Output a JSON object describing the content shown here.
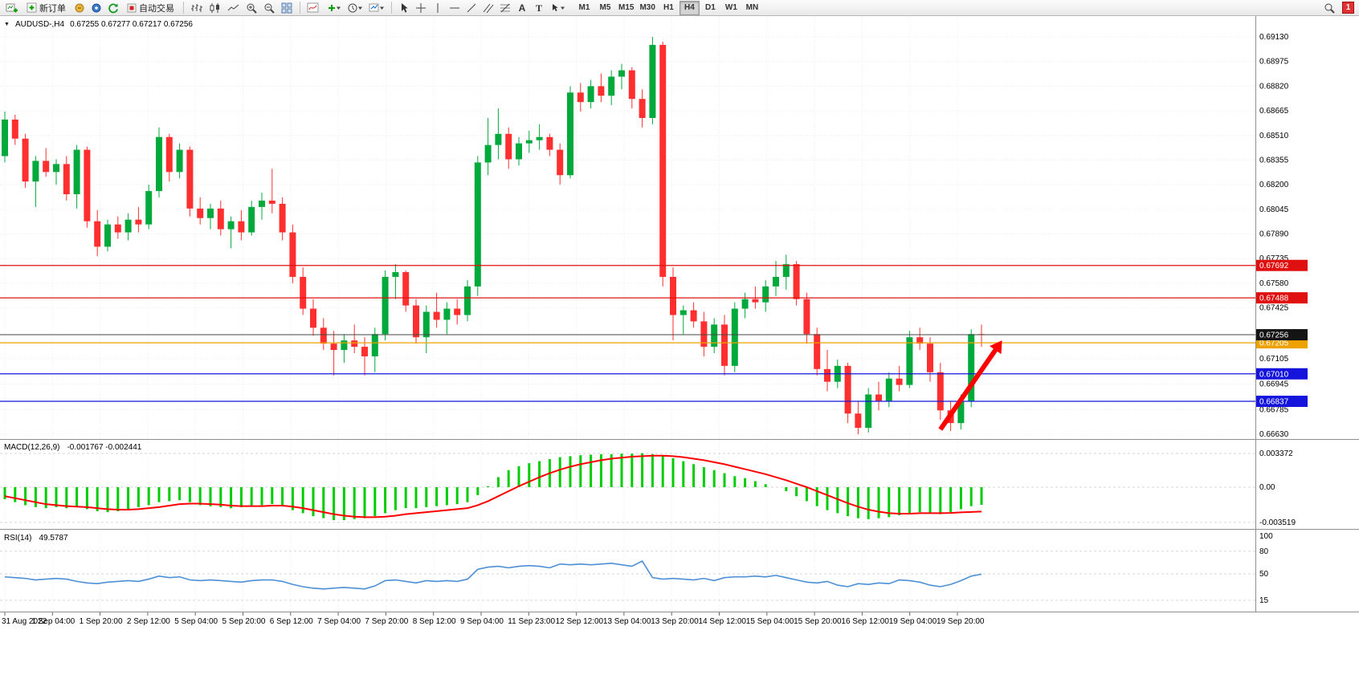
{
  "toolbar": {
    "new_order_label": "新订单",
    "auto_trading_label": "自动交易",
    "timeframes": [
      "M1",
      "M5",
      "M15",
      "M30",
      "H1",
      "H4",
      "D1",
      "W1",
      "MN"
    ],
    "active_timeframe": "H4",
    "notification_count": "1"
  },
  "chart": {
    "collapse_arrow": "▼",
    "symbol": "AUDUSD-,H4",
    "ohlc": "0.67255 0.67277 0.67217 0.67256"
  },
  "chart_data": {
    "type": "candlestick",
    "symbol": "AUDUSD-",
    "timeframe": "H4",
    "colors": {
      "up": "#00a93b",
      "down": "#ff2f2f"
    },
    "price_axis": {
      "max": 0.6913,
      "min": 0.6663,
      "labels": [
        "0.69130",
        "0.68975",
        "0.68820",
        "0.68665",
        "0.68510",
        "0.68355",
        "0.68200",
        "0.68045",
        "0.67890",
        "0.67735",
        "0.67580",
        "0.67425",
        "0.67105",
        "0.66945",
        "0.66785",
        "0.66630"
      ]
    },
    "time_axis": [
      "31 Aug 2022",
      "1 Sep 04:00",
      "1 Sep 20:00",
      "2 Sep 12:00",
      "5 Sep 04:00",
      "5 Sep 20:00",
      "6 Sep 12:00",
      "7 Sep 04:00",
      "7 Sep 20:00",
      "8 Sep 12:00",
      "9 Sep 04:00",
      "11 Sep 23:00",
      "12 Sep 12:00",
      "13 Sep 04:00",
      "13 Sep 20:00",
      "14 Sep 12:00",
      "15 Sep 04:00",
      "15 Sep 20:00",
      "16 Sep 12:00",
      "19 Sep 04:00",
      "19 Sep 20:00"
    ],
    "candles": [
      [
        0.6838,
        0.6866,
        0.6834,
        0.6861
      ],
      [
        0.6861,
        0.6864,
        0.6845,
        0.6849
      ],
      [
        0.6849,
        0.6852,
        0.6818,
        0.6822
      ],
      [
        0.6822,
        0.6838,
        0.6806,
        0.6835
      ],
      [
        0.6835,
        0.6843,
        0.6825,
        0.6828
      ],
      [
        0.6828,
        0.6836,
        0.682,
        0.6833
      ],
      [
        0.6833,
        0.6838,
        0.681,
        0.6814
      ],
      [
        0.6814,
        0.6845,
        0.6805,
        0.6842
      ],
      [
        0.6842,
        0.6844,
        0.6793,
        0.6797
      ],
      [
        0.6797,
        0.6804,
        0.6775,
        0.6781
      ],
      [
        0.6781,
        0.6798,
        0.6778,
        0.6795
      ],
      [
        0.6795,
        0.68,
        0.6786,
        0.679
      ],
      [
        0.679,
        0.6802,
        0.6785,
        0.6798
      ],
      [
        0.6798,
        0.6806,
        0.679,
        0.6795
      ],
      [
        0.6795,
        0.682,
        0.6792,
        0.6816
      ],
      [
        0.6816,
        0.6856,
        0.6812,
        0.685
      ],
      [
        0.685,
        0.6852,
        0.6822,
        0.6828
      ],
      [
        0.6828,
        0.6846,
        0.6824,
        0.6842
      ],
      [
        0.6842,
        0.6844,
        0.68,
        0.6805
      ],
      [
        0.6805,
        0.6812,
        0.6795,
        0.6799
      ],
      [
        0.6799,
        0.6808,
        0.6792,
        0.6805
      ],
      [
        0.6805,
        0.681,
        0.6788,
        0.6792
      ],
      [
        0.6792,
        0.68,
        0.678,
        0.6797
      ],
      [
        0.6797,
        0.6804,
        0.6785,
        0.679
      ],
      [
        0.679,
        0.681,
        0.6788,
        0.6806
      ],
      [
        0.6806,
        0.6815,
        0.6798,
        0.681
      ],
      [
        0.681,
        0.683,
        0.6802,
        0.6808
      ],
      [
        0.6808,
        0.6812,
        0.6785,
        0.679
      ],
      [
        0.679,
        0.6795,
        0.6758,
        0.6762
      ],
      [
        0.6762,
        0.6768,
        0.6738,
        0.6742
      ],
      [
        0.6742,
        0.6748,
        0.6725,
        0.673
      ],
      [
        0.673,
        0.6736,
        0.6716,
        0.672
      ],
      [
        0.672,
        0.6728,
        0.67,
        0.6716
      ],
      [
        0.6716,
        0.6726,
        0.6708,
        0.6722
      ],
      [
        0.6722,
        0.6732,
        0.6714,
        0.6718
      ],
      [
        0.6718,
        0.6724,
        0.67,
        0.6712
      ],
      [
        0.6712,
        0.673,
        0.6702,
        0.6726
      ],
      [
        0.6726,
        0.6766,
        0.6722,
        0.6762
      ],
      [
        0.6762,
        0.677,
        0.6748,
        0.6765
      ],
      [
        0.6765,
        0.6766,
        0.674,
        0.6744
      ],
      [
        0.6744,
        0.6748,
        0.672,
        0.6724
      ],
      [
        0.6724,
        0.6744,
        0.6714,
        0.674
      ],
      [
        0.674,
        0.6752,
        0.673,
        0.6735
      ],
      [
        0.6735,
        0.6746,
        0.6726,
        0.6742
      ],
      [
        0.6742,
        0.6748,
        0.6732,
        0.6738
      ],
      [
        0.6738,
        0.676,
        0.6734,
        0.6756
      ],
      [
        0.6756,
        0.6838,
        0.675,
        0.6834
      ],
      [
        0.6834,
        0.6862,
        0.6826,
        0.6845
      ],
      [
        0.6845,
        0.6868,
        0.6836,
        0.6852
      ],
      [
        0.6852,
        0.6856,
        0.683,
        0.6836
      ],
      [
        0.6836,
        0.685,
        0.6832,
        0.6846
      ],
      [
        0.6846,
        0.6854,
        0.684,
        0.6848
      ],
      [
        0.6848,
        0.6858,
        0.6842,
        0.685
      ],
      [
        0.685,
        0.6852,
        0.6838,
        0.6842
      ],
      [
        0.6842,
        0.6846,
        0.682,
        0.6826
      ],
      [
        0.6826,
        0.6882,
        0.6824,
        0.6878
      ],
      [
        0.6878,
        0.6884,
        0.6866,
        0.6872
      ],
      [
        0.6872,
        0.6886,
        0.6868,
        0.6882
      ],
      [
        0.6882,
        0.689,
        0.6872,
        0.6876
      ],
      [
        0.6876,
        0.6892,
        0.687,
        0.6888
      ],
      [
        0.6888,
        0.6896,
        0.688,
        0.6892
      ],
      [
        0.6892,
        0.6894,
        0.6868,
        0.6874
      ],
      [
        0.6874,
        0.688,
        0.6856,
        0.6862
      ],
      [
        0.6862,
        0.6913,
        0.6858,
        0.6908
      ],
      [
        0.6908,
        0.691,
        0.6756,
        0.6762
      ],
      [
        0.6762,
        0.6768,
        0.6722,
        0.6738
      ],
      [
        0.6738,
        0.6744,
        0.6726,
        0.6741
      ],
      [
        0.6741,
        0.6746,
        0.673,
        0.6734
      ],
      [
        0.6734,
        0.674,
        0.6712,
        0.6718
      ],
      [
        0.6718,
        0.6736,
        0.6714,
        0.6732
      ],
      [
        0.6732,
        0.6738,
        0.67,
        0.6706
      ],
      [
        0.6706,
        0.6746,
        0.6702,
        0.6742
      ],
      [
        0.6742,
        0.6752,
        0.6736,
        0.6748
      ],
      [
        0.6748,
        0.6756,
        0.6742,
        0.6746
      ],
      [
        0.6746,
        0.676,
        0.674,
        0.6756
      ],
      [
        0.6756,
        0.6772,
        0.675,
        0.6762
      ],
      [
        0.6762,
        0.6776,
        0.6754,
        0.677
      ],
      [
        0.677,
        0.6772,
        0.6744,
        0.6748
      ],
      [
        0.6748,
        0.6752,
        0.672,
        0.6726
      ],
      [
        0.6726,
        0.673,
        0.67,
        0.6704
      ],
      [
        0.6704,
        0.6716,
        0.669,
        0.6696
      ],
      [
        0.6696,
        0.671,
        0.6692,
        0.6706
      ],
      [
        0.6706,
        0.6708,
        0.667,
        0.6676
      ],
      [
        0.6676,
        0.6684,
        0.6663,
        0.6667
      ],
      [
        0.6667,
        0.6692,
        0.6664,
        0.6688
      ],
      [
        0.6688,
        0.6696,
        0.6678,
        0.6684
      ],
      [
        0.6684,
        0.6702,
        0.668,
        0.6698
      ],
      [
        0.6698,
        0.6706,
        0.669,
        0.6694
      ],
      [
        0.6694,
        0.6728,
        0.6692,
        0.6724
      ],
      [
        0.6724,
        0.673,
        0.6716,
        0.672
      ],
      [
        0.672,
        0.6724,
        0.6696,
        0.6702
      ],
      [
        0.6702,
        0.6708,
        0.6672,
        0.6678
      ],
      [
        0.6678,
        0.6684,
        0.6665,
        0.667
      ],
      [
        0.667,
        0.6688,
        0.6666,
        0.6684
      ],
      [
        0.6684,
        0.6729,
        0.668,
        0.6726
      ],
      [
        0.6726,
        0.6732,
        0.6718,
        0.67256
      ]
    ],
    "hlines": [
      {
        "price": 0.67692,
        "label": "0.67692",
        "color": "#e01010"
      },
      {
        "price": 0.67488,
        "label": "0.67488",
        "color": "#e01010"
      },
      {
        "price": 0.67205,
        "label": "0.67205",
        "color": "#eda200"
      },
      {
        "price": 0.6701,
        "label": "0.67010",
        "color": "#1414dc"
      },
      {
        "price": 0.66837,
        "label": "0.66837",
        "color": "#1414dc"
      }
    ],
    "current_price": {
      "value": 0.67256,
      "label": "0.67256",
      "tag_color": "#141414"
    },
    "annotation_arrow": {
      "from_bar": 91,
      "from_price": 0.6666,
      "to_bar": 97,
      "to_price": 0.6722,
      "color": "#ff0000"
    },
    "macd": {
      "label": "MACD(12,26,9)",
      "values_text": "-0.001767 -0.002441",
      "axis_labels": [
        "0.003372",
        "0.00",
        "-0.003519"
      ],
      "axis_values": [
        0.003372,
        0,
        -0.003519
      ],
      "scale": 0.001,
      "histogram_color": "#00cc00",
      "signal_color": "#ff0000",
      "histogram": [
        -1.2,
        -1.5,
        -1.8,
        -2.0,
        -2.1,
        -2.0,
        -2.1,
        -1.9,
        -2.2,
        -2.4,
        -2.5,
        -2.4,
        -2.2,
        -2.0,
        -1.8,
        -1.5,
        -1.4,
        -1.3,
        -1.5,
        -1.8,
        -1.9,
        -2.0,
        -2.1,
        -2.0,
        -1.9,
        -1.8,
        -1.7,
        -1.9,
        -2.3,
        -2.6,
        -2.9,
        -3.1,
        -3.3,
        -3.3,
        -3.2,
        -3.1,
        -2.9,
        -2.6,
        -2.3,
        -2.1,
        -2.1,
        -2.0,
        -1.9,
        -1.8,
        -1.7,
        -1.5,
        -0.8,
        0.1,
        1.0,
        1.7,
        2.1,
        2.4,
        2.6,
        2.8,
        3.0,
        3.1,
        3.2,
        3.25,
        3.3,
        3.3,
        3.35,
        3.35,
        3.4,
        3.3,
        3.1,
        2.9,
        2.6,
        2.3,
        2.0,
        1.7,
        1.4,
        1.1,
        0.9,
        0.6,
        0.3,
        0.0,
        -0.4,
        -0.9,
        -1.4,
        -1.9,
        -2.3,
        -2.6,
        -2.9,
        -3.1,
        -3.2,
        -3.1,
        -3.0,
        -2.8,
        -2.6,
        -2.5,
        -2.6,
        -2.7,
        -2.5,
        -2.2,
        -1.9,
        -1.77
      ],
      "signal": [
        -0.9,
        -1.1,
        -1.3,
        -1.5,
        -1.7,
        -1.8,
        -1.9,
        -1.95,
        -2.0,
        -2.1,
        -2.2,
        -2.25,
        -2.25,
        -2.2,
        -2.1,
        -2.0,
        -1.85,
        -1.7,
        -1.65,
        -1.65,
        -1.7,
        -1.75,
        -1.85,
        -1.9,
        -1.9,
        -1.9,
        -1.85,
        -1.85,
        -1.95,
        -2.1,
        -2.3,
        -2.5,
        -2.7,
        -2.85,
        -2.95,
        -3.0,
        -3.0,
        -2.95,
        -2.85,
        -2.7,
        -2.6,
        -2.5,
        -2.4,
        -2.3,
        -2.2,
        -2.1,
        -1.8,
        -1.4,
        -0.9,
        -0.4,
        0.1,
        0.55,
        1.0,
        1.4,
        1.75,
        2.05,
        2.3,
        2.5,
        2.7,
        2.85,
        2.95,
        3.05,
        3.1,
        3.15,
        3.15,
        3.1,
        3.0,
        2.85,
        2.7,
        2.5,
        2.3,
        2.05,
        1.8,
        1.55,
        1.3,
        1.0,
        0.7,
        0.35,
        0.0,
        -0.4,
        -0.8,
        -1.2,
        -1.6,
        -1.95,
        -2.25,
        -2.45,
        -2.6,
        -2.65,
        -2.65,
        -2.6,
        -2.6,
        -2.6,
        -2.58,
        -2.52,
        -2.48,
        -2.44
      ]
    },
    "rsi": {
      "label": "RSI(14)",
      "value_text": "49.5787",
      "line_color": "#4c8fd6",
      "levels": [
        100,
        80,
        50,
        15
      ],
      "axis_labels": [
        "100",
        "80",
        "50",
        "15"
      ],
      "range": [
        0,
        100
      ],
      "values": [
        46,
        45,
        44,
        42,
        43,
        44,
        43,
        40,
        38,
        37,
        39,
        40,
        41,
        40,
        43,
        47,
        45,
        46,
        42,
        41,
        42,
        41,
        40,
        39,
        41,
        42,
        42,
        40,
        36,
        33,
        31,
        30,
        31,
        32,
        31,
        30,
        34,
        41,
        42,
        40,
        38,
        41,
        40,
        41,
        40,
        43,
        56,
        59,
        60,
        58,
        60,
        61,
        60,
        58,
        63,
        62,
        63,
        62,
        63,
        64,
        62,
        60,
        67,
        45,
        43,
        44,
        43,
        42,
        44,
        41,
        45,
        46,
        46,
        47,
        46,
        48,
        45,
        42,
        39,
        38,
        40,
        35,
        33,
        37,
        36,
        38,
        37,
        42,
        41,
        39,
        35,
        33,
        36,
        41,
        47,
        49.6
      ]
    }
  }
}
